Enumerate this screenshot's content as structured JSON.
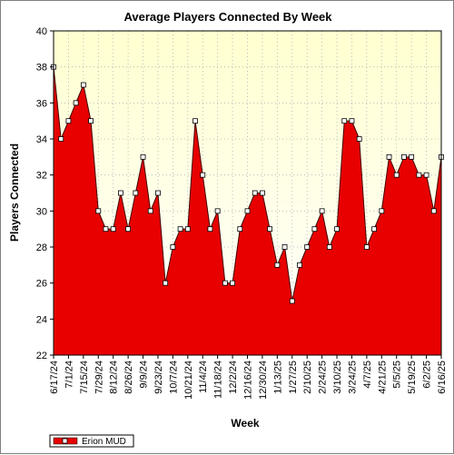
{
  "chart_data": {
    "type": "area",
    "title": "Average Players Connected By Week",
    "xlabel": "Week",
    "ylabel": "Players Connected",
    "ylim": [
      22,
      40
    ],
    "y_ticks": [
      22,
      24,
      26,
      28,
      30,
      32,
      34,
      36,
      38,
      40
    ],
    "grid": true,
    "legend_position": "bottom-left",
    "x_tick_labels": [
      "6/17/24",
      "7/1/24",
      "7/15/24",
      "7/29/24",
      "8/12/24",
      "8/26/24",
      "9/9/24",
      "9/23/24",
      "10/7/24",
      "10/21/24",
      "11/4/24",
      "11/18/24",
      "12/2/24",
      "12/16/24",
      "12/30/24",
      "1/13/25",
      "1/27/25",
      "2/10/25",
      "2/24/25",
      "3/10/25",
      "3/24/25",
      "4/7/25",
      "4/21/25",
      "5/5/25",
      "5/19/25",
      "6/2/25",
      "6/16/25"
    ],
    "series": [
      {
        "name": "Erion MUD",
        "color": "#e80000",
        "x": [
          "6/17/24",
          "6/24/24",
          "7/1/24",
          "7/8/24",
          "7/15/24",
          "7/22/24",
          "7/29/24",
          "8/5/24",
          "8/12/24",
          "8/19/24",
          "8/26/24",
          "9/2/24",
          "9/9/24",
          "9/16/24",
          "9/23/24",
          "9/30/24",
          "10/7/24",
          "10/14/24",
          "10/21/24",
          "10/28/24",
          "11/4/24",
          "11/11/24",
          "11/18/24",
          "11/25/24",
          "12/2/24",
          "12/9/24",
          "12/16/24",
          "12/23/24",
          "12/30/24",
          "1/6/25",
          "1/13/25",
          "1/20/25",
          "1/27/25",
          "2/3/25",
          "2/10/25",
          "2/17/25",
          "2/24/25",
          "3/3/25",
          "3/10/25",
          "3/17/25",
          "3/24/25",
          "3/31/25",
          "4/7/25",
          "4/14/25",
          "4/21/25",
          "4/28/25",
          "5/5/25",
          "5/12/25",
          "5/19/25",
          "5/26/25",
          "6/2/25",
          "6/9/25",
          "6/16/25"
        ],
        "values": [
          38,
          34,
          35,
          36,
          37,
          35,
          30,
          29,
          29,
          31,
          29,
          31,
          33,
          30,
          31,
          26,
          28,
          29,
          29,
          35,
          32,
          29,
          30,
          26,
          26,
          29,
          30,
          31,
          31,
          29,
          27,
          28,
          25,
          27,
          28,
          29,
          30,
          28,
          29,
          35,
          35,
          34,
          28,
          29,
          30,
          33,
          32,
          33,
          33,
          32,
          32,
          30,
          33
        ]
      }
    ]
  }
}
